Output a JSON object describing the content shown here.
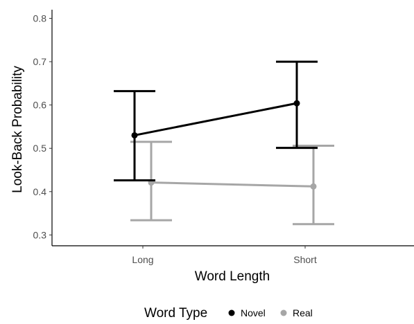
{
  "chart_data": {
    "type": "line",
    "xlabel": "Word Length",
    "ylabel": "Look-Back Probability",
    "categories": [
      "Long",
      "Short"
    ],
    "y_ticks": [
      "0.3",
      "0.4",
      "0.5",
      "0.6",
      "0.7",
      "0.8"
    ],
    "ylim": [
      0.275,
      0.82
    ],
    "grid": false,
    "legend": {
      "title": "Word Type",
      "position": "bottom"
    },
    "series": [
      {
        "name": "Novel",
        "color": "#000000",
        "values": [
          0.53,
          0.604
        ],
        "error_low": [
          0.426,
          0.501
        ],
        "error_high": [
          0.632,
          0.7
        ]
      },
      {
        "name": "Real",
        "color": "#a6a6a6",
        "values": [
          0.421,
          0.412
        ],
        "error_low": [
          0.334,
          0.325
        ],
        "error_high": [
          0.515,
          0.506
        ]
      }
    ]
  }
}
